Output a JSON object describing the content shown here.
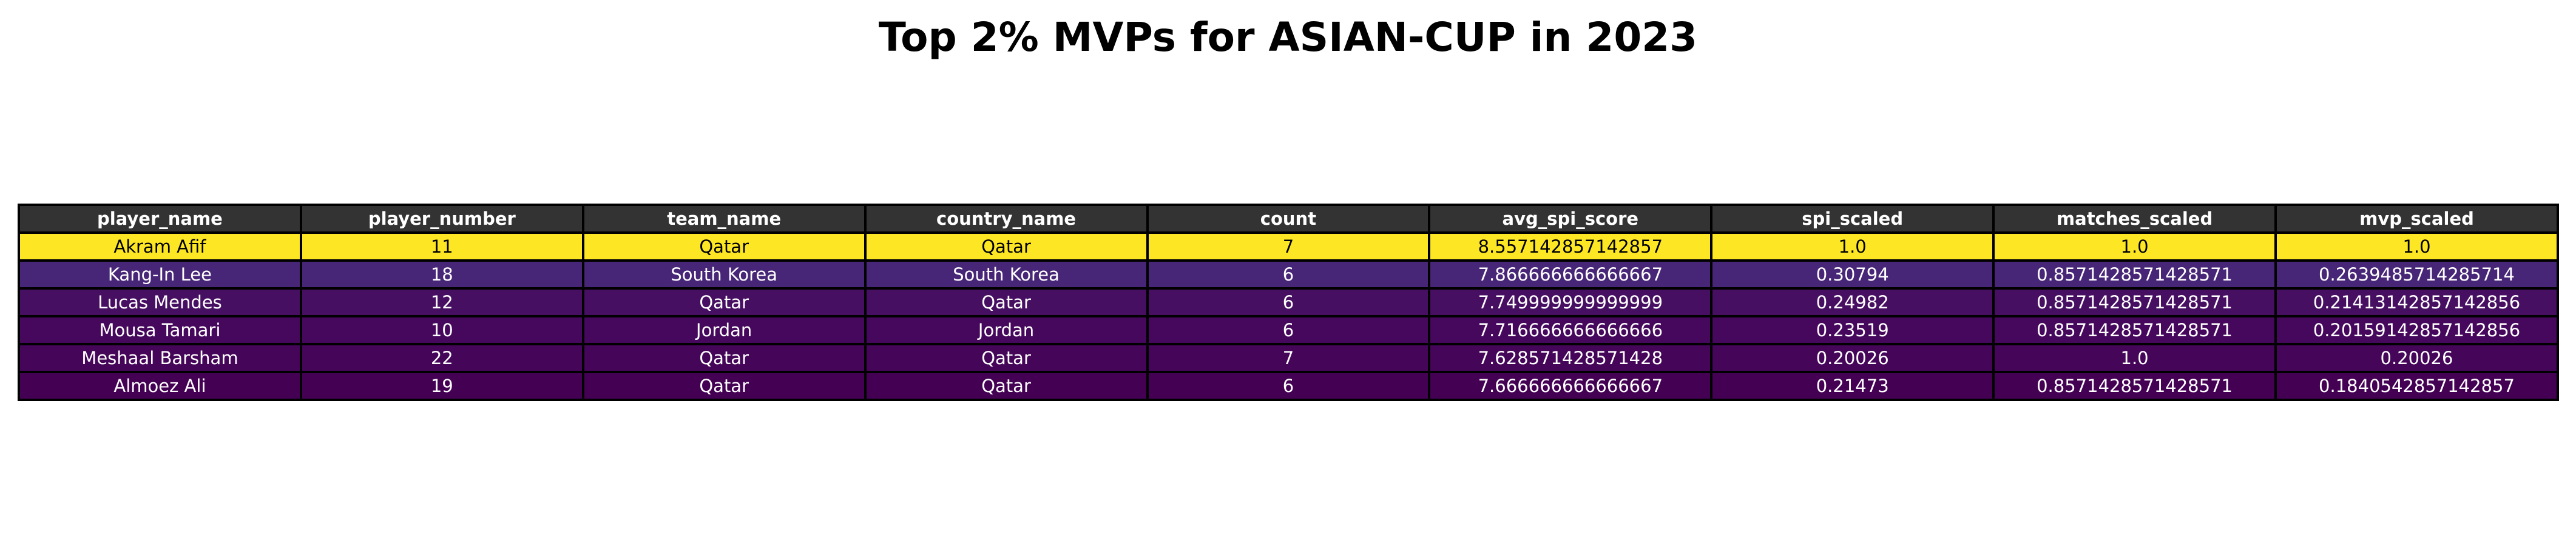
{
  "title": "Top 2% MVPs for ASIAN-CUP in 2023",
  "chart_data": {
    "type": "table",
    "title": "Top 2% MVPs for ASIAN-CUP in 2023",
    "columns": [
      "player_name",
      "player_number",
      "team_name",
      "country_name",
      "count",
      "avg_spi_score",
      "spi_scaled",
      "matches_scaled",
      "mvp_scaled"
    ],
    "rows": [
      [
        "Akram Afif",
        "11",
        "Qatar",
        "Qatar",
        "7",
        "8.557142857142857",
        "1.0",
        "1.0",
        "1.0"
      ],
      [
        "Kang-In Lee",
        "18",
        "South Korea",
        "South Korea",
        "6",
        "7.866666666666667",
        "0.30794",
        "0.8571428571428571",
        "0.2639485714285714"
      ],
      [
        "Lucas Mendes",
        "12",
        "Qatar",
        "Qatar",
        "6",
        "7.749999999999999",
        "0.24982",
        "0.8571428571428571",
        "0.21413142857142856"
      ],
      [
        "Mousa Tamari",
        "10",
        "Jordan",
        "Jordan",
        "6",
        "7.716666666666666",
        "0.23519",
        "0.8571428571428571",
        "0.20159142857142856"
      ],
      [
        "Meshaal Barsham",
        "22",
        "Qatar",
        "Qatar",
        "7",
        "7.628571428571428",
        "0.20026",
        "1.0",
        "0.20026"
      ],
      [
        "Almoez Ali",
        "19",
        "Qatar",
        "Qatar",
        "6",
        "7.666666666666667",
        "0.21473",
        "0.8571428571428571",
        "0.1840542857142857"
      ]
    ],
    "header_color": "#333333",
    "row_colors": [
      "#fde725",
      "#482677",
      "#470f62",
      "#46085c",
      "#450559",
      "#440154"
    ]
  }
}
